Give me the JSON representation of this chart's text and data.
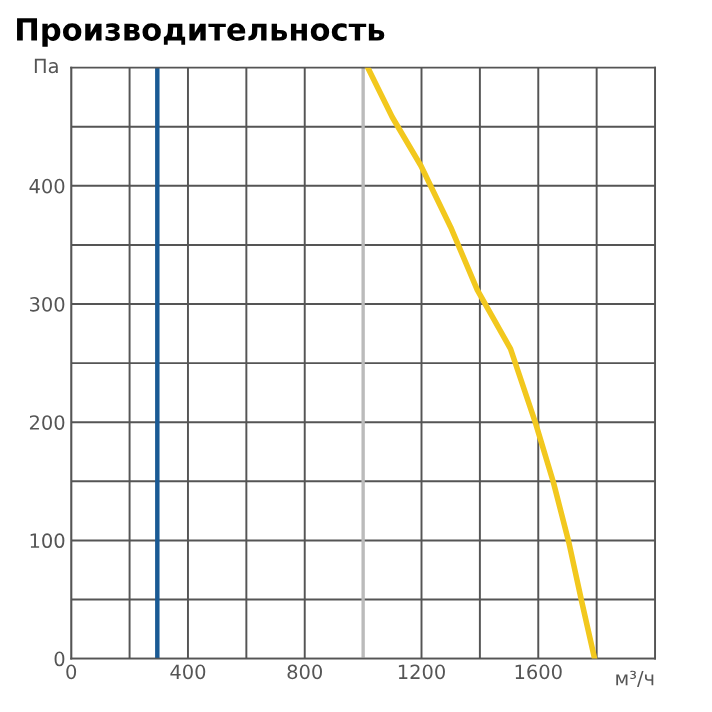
{
  "chart_data": {
    "type": "line",
    "title": "Производительность",
    "xlabel": "м³/ч",
    "ylabel": "Па",
    "series": [
      {
        "color": "#f2c81e",
        "x": [
          1016,
          1100,
          1198,
          1300,
          1391,
          1505,
          1591,
          1652,
          1705,
          1750,
          1793
        ],
        "values": [
          500,
          458,
          417,
          365,
          312,
          262,
          199,
          149,
          98,
          47,
          0
        ]
      }
    ],
    "xlim": [
      0,
      2000
    ],
    "ylim": [
      0,
      500
    ],
    "xticks": [
      0,
      {
        "value": 200,
        "label": null
      },
      400,
      {
        "value": 600,
        "label": null
      },
      800,
      {
        "value": 1000,
        "label": null
      },
      1200,
      {
        "value": 1400,
        "label": null
      },
      1600,
      {
        "value": 1800,
        "label": null
      }
    ],
    "yticks": [
      0,
      {
        "value": 50,
        "label": null
      },
      100,
      {
        "value": 150,
        "label": null
      },
      200,
      {
        "value": 250,
        "label": null
      },
      300,
      {
        "value": 350,
        "label": null
      },
      400,
      {
        "value": 450,
        "label": null
      }
    ],
    "ref_lines": [
      {
        "axis": "x",
        "value": 295,
        "color": "#1a5a94"
      },
      {
        "axis": "x",
        "value": 1000,
        "color": "#bbbbbb"
      }
    ],
    "grid": true,
    "legend": false
  }
}
